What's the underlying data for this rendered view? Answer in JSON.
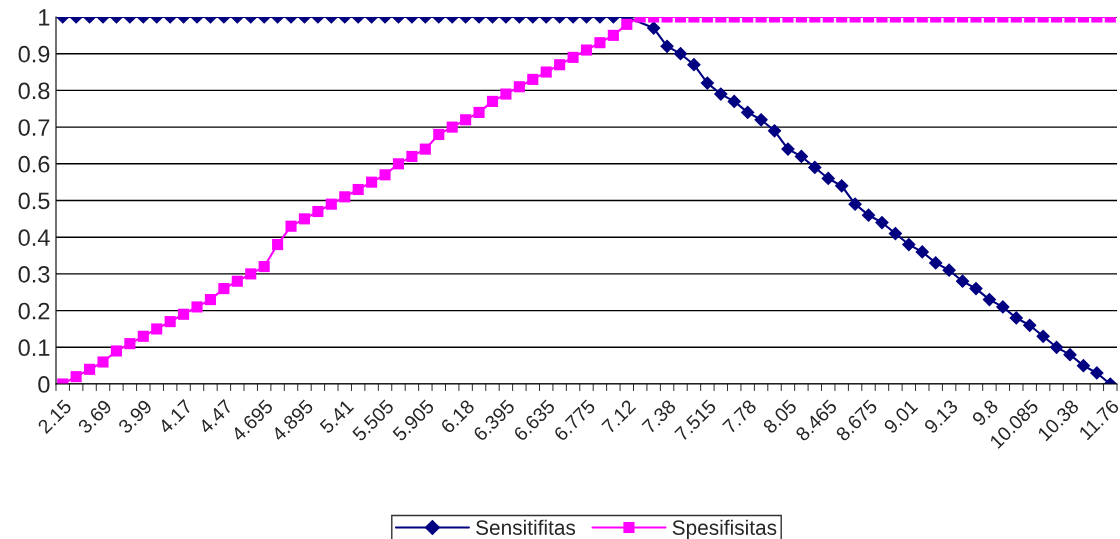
{
  "chart_data": {
    "type": "line",
    "categories": [
      "2.15",
      null,
      null,
      "3.69",
      null,
      null,
      "3.99",
      null,
      null,
      "4.17",
      null,
      null,
      "4.47",
      null,
      null,
      "4.695",
      null,
      null,
      "4.895",
      null,
      null,
      "5.41",
      null,
      null,
      "5.505",
      null,
      null,
      "5.905",
      null,
      null,
      "6.18",
      null,
      null,
      "6.395",
      null,
      null,
      "6.635",
      null,
      null,
      "6.775",
      null,
      null,
      "7.12",
      null,
      null,
      "7.38",
      null,
      null,
      "7.515",
      null,
      null,
      "7.78",
      null,
      null,
      "8.05",
      null,
      null,
      "8.465",
      null,
      null,
      "8.675",
      null,
      null,
      "9.01",
      null,
      null,
      "9.13",
      null,
      null,
      "9.8",
      null,
      null,
      "10.085",
      null,
      null,
      "10.38",
      null,
      null,
      "11.76"
    ],
    "series": [
      {
        "name": "Sensitifitas",
        "color": "#000080",
        "marker": "diamond",
        "values": [
          1,
          1,
          1,
          1,
          1,
          1,
          1,
          1,
          1,
          1,
          1,
          1,
          1,
          1,
          1,
          1,
          1,
          1,
          1,
          1,
          1,
          1,
          1,
          1,
          1,
          1,
          1,
          1,
          1,
          1,
          1,
          1,
          1,
          1,
          1,
          1,
          1,
          1,
          1,
          1,
          1,
          1,
          1,
          null,
          0.97,
          0.92,
          0.9,
          0.87,
          0.82,
          0.79,
          0.77,
          0.74,
          0.72,
          0.69,
          0.64,
          0.62,
          0.59,
          0.56,
          0.54,
          0.49,
          0.46,
          0.44,
          0.41,
          0.38,
          0.36,
          0.33,
          0.31,
          0.28,
          0.26,
          0.23,
          0.21,
          0.18,
          0.16,
          0.13,
          0.1,
          0.08,
          0.05,
          0.03,
          0
        ]
      },
      {
        "name": "Spesifisitas",
        "color": "#ff00ff",
        "marker": "square",
        "values": [
          0,
          0.02,
          0.04,
          0.06,
          0.09,
          0.11,
          0.13,
          0.15,
          0.17,
          0.19,
          0.21,
          0.23,
          0.26,
          0.28,
          0.3,
          0.32,
          0.38,
          0.43,
          0.45,
          0.47,
          0.49,
          0.51,
          0.53,
          0.55,
          0.57,
          0.6,
          0.62,
          0.64,
          0.68,
          0.7,
          0.72,
          0.74,
          0.77,
          0.79,
          0.81,
          0.83,
          0.85,
          0.87,
          0.89,
          0.91,
          0.93,
          0.95,
          0.98,
          1,
          1,
          1,
          1,
          1,
          1,
          1,
          1,
          1,
          1,
          1,
          1,
          1,
          1,
          1,
          1,
          1,
          1,
          1,
          1,
          1,
          1,
          1,
          1,
          1,
          1,
          1,
          1,
          1,
          1,
          1,
          1,
          1,
          1,
          1,
          1
        ]
      }
    ],
    "ylim": [
      0,
      1
    ],
    "yticks": [
      0,
      0.1,
      0.2,
      0.3,
      0.4,
      0.5,
      0.6,
      0.7,
      0.8,
      0.9,
      1
    ],
    "grid": "y",
    "legend": "bottom",
    "line_style": "solid"
  }
}
